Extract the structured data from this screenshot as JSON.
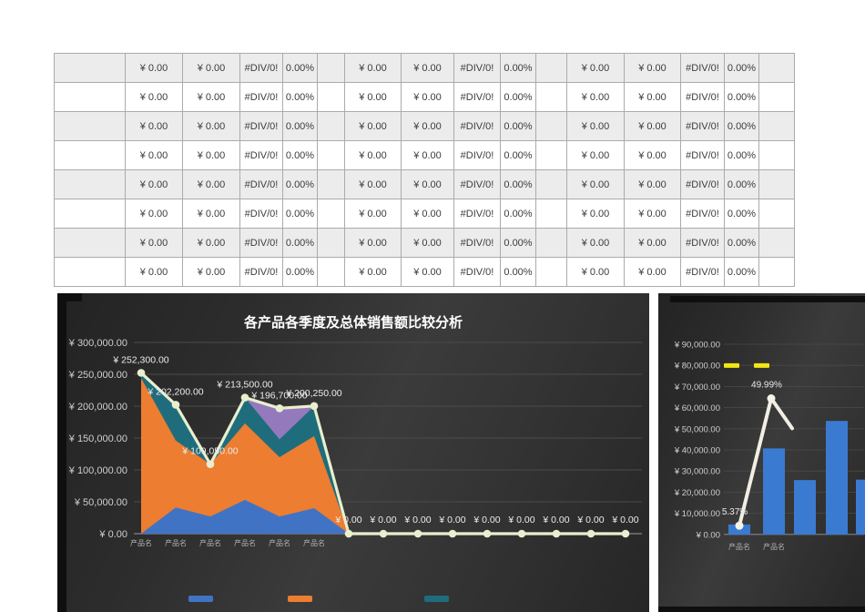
{
  "table": {
    "rows": [
      [
        "",
        "¥ 0.00",
        "¥ 0.00",
        "#DIV/0!",
        "0.00%",
        "",
        "¥ 0.00",
        "¥ 0.00",
        "#DIV/0!",
        "0.00%",
        "",
        "¥ 0.00",
        "¥ 0.00",
        "#DIV/0!",
        "0.00%",
        ""
      ],
      [
        "",
        "¥ 0.00",
        "¥ 0.00",
        "#DIV/0!",
        "0.00%",
        "",
        "¥ 0.00",
        "¥ 0.00",
        "#DIV/0!",
        "0.00%",
        "",
        "¥ 0.00",
        "¥ 0.00",
        "#DIV/0!",
        "0.00%",
        ""
      ],
      [
        "",
        "¥ 0.00",
        "¥ 0.00",
        "#DIV/0!",
        "0.00%",
        "",
        "¥ 0.00",
        "¥ 0.00",
        "#DIV/0!",
        "0.00%",
        "",
        "¥ 0.00",
        "¥ 0.00",
        "#DIV/0!",
        "0.00%",
        ""
      ],
      [
        "",
        "¥ 0.00",
        "¥ 0.00",
        "#DIV/0!",
        "0.00%",
        "",
        "¥ 0.00",
        "¥ 0.00",
        "#DIV/0!",
        "0.00%",
        "",
        "¥ 0.00",
        "¥ 0.00",
        "#DIV/0!",
        "0.00%",
        ""
      ],
      [
        "",
        "¥ 0.00",
        "¥ 0.00",
        "#DIV/0!",
        "0.00%",
        "",
        "¥ 0.00",
        "¥ 0.00",
        "#DIV/0!",
        "0.00%",
        "",
        "¥ 0.00",
        "¥ 0.00",
        "#DIV/0!",
        "0.00%",
        ""
      ],
      [
        "",
        "¥ 0.00",
        "¥ 0.00",
        "#DIV/0!",
        "0.00%",
        "",
        "¥ 0.00",
        "¥ 0.00",
        "#DIV/0!",
        "0.00%",
        "",
        "¥ 0.00",
        "¥ 0.00",
        "#DIV/0!",
        "0.00%",
        ""
      ],
      [
        "",
        "¥ 0.00",
        "¥ 0.00",
        "#DIV/0!",
        "0.00%",
        "",
        "¥ 0.00",
        "¥ 0.00",
        "#DIV/0!",
        "0.00%",
        "",
        "¥ 0.00",
        "¥ 0.00",
        "#DIV/0!",
        "0.00%",
        ""
      ],
      [
        "",
        "¥ 0.00",
        "¥ 0.00",
        "#DIV/0!",
        "0.00%",
        "",
        "¥ 0.00",
        "¥ 0.00",
        "#DIV/0!",
        "0.00%",
        "",
        "¥ 0.00",
        "¥ 0.00",
        "#DIV/0!",
        "0.00%",
        ""
      ]
    ]
  },
  "chart_data": [
    {
      "type": "area",
      "title": "各产品各季度及总体销售额比较分析",
      "categories": [
        "产品名",
        "产品名",
        "产品名",
        "产品名",
        "产品名",
        "产品名",
        "",
        "",
        "",
        "",
        "",
        "",
        "",
        "",
        ""
      ],
      "y_ticks": [
        "¥  300,000.00",
        "¥  250,000.00",
        "¥  200,000.00",
        "¥  150,000.00",
        "¥  100,000.00",
        "¥  50,000.00",
        "¥  0.00"
      ],
      "ylim": [
        0,
        300000
      ],
      "grid": true,
      "series": [
        {
          "name": "area-purple",
          "kind": "area",
          "color": "#9579bd",
          "values": [
            0,
            0,
            0,
            213500,
            196700,
            200250,
            0,
            0,
            0,
            0,
            0,
            0,
            0,
            0,
            0
          ]
        },
        {
          "name": "area-teal",
          "kind": "area",
          "color": "#1f6d7c",
          "values": [
            252300,
            202200,
            109050,
            213500,
            148000,
            200250,
            0,
            0,
            0,
            0,
            0,
            0,
            0,
            0,
            0
          ]
        },
        {
          "name": "area-orange",
          "kind": "area",
          "color": "#ed7d31",
          "values": [
            244000,
            146000,
            109050,
            173000,
            120000,
            153000,
            0,
            0,
            0,
            0,
            0,
            0,
            0,
            0,
            0
          ]
        },
        {
          "name": "area-blue",
          "kind": "area",
          "color": "#4173c4",
          "values": [
            0,
            41000,
            27000,
            53000,
            27000,
            40000,
            0,
            0,
            0,
            0,
            0,
            0,
            0,
            0,
            0
          ]
        },
        {
          "name": "line-total",
          "kind": "line",
          "color": "#e9efce",
          "values": [
            252300,
            202200,
            109050,
            213500,
            196700,
            200250,
            0,
            0,
            0,
            0,
            0,
            0,
            0,
            0,
            0
          ]
        }
      ],
      "point_labels": [
        "¥ 252,300.00",
        "¥ 202,200.00",
        "¥ 109,050.00",
        "¥ 213,500.00",
        "¥ 196,700.00",
        "¥ 200,250.00",
        "¥ 0.00",
        "¥ 0.00",
        "¥ 0.00",
        "¥ 0.00",
        "¥ 0.00",
        "¥ 0.00",
        "¥ 0.00",
        "¥ 0.00",
        "¥ 0.00"
      ],
      "legend_position": "bottom",
      "legend_colors": [
        "#4173c4",
        "#ed7d31",
        "#1f6d7c"
      ]
    },
    {
      "type": "bar",
      "title": "",
      "categories": [
        "产品名",
        "产品名",
        "",
        "",
        ""
      ],
      "y_ticks": [
        "¥  90,000.00",
        "¥  80,000.00",
        "¥  70,000.00",
        "¥  60,000.00",
        "¥  50,000.00",
        "¥  40,000.00",
        "¥  30,000.00",
        "¥  20,000.00",
        "¥  10,000.00",
        "¥  0.00"
      ],
      "ylim": [
        0,
        90000
      ],
      "grid": true,
      "bars": {
        "name": "sales-bars",
        "color": "#3b7ad1",
        "values": [
          4800,
          40800,
          25800,
          53800,
          26000
        ]
      },
      "target": {
        "name": "target-dashes",
        "color": "#f2e713",
        "value": 80000,
        "count": 2
      },
      "line": {
        "name": "percent-line",
        "color": "#f1eee4",
        "pct_values": [
          5.37,
          49.99,
          39.5
        ],
        "labels": [
          "5.37%",
          "49.99%",
          ""
        ]
      }
    }
  ]
}
